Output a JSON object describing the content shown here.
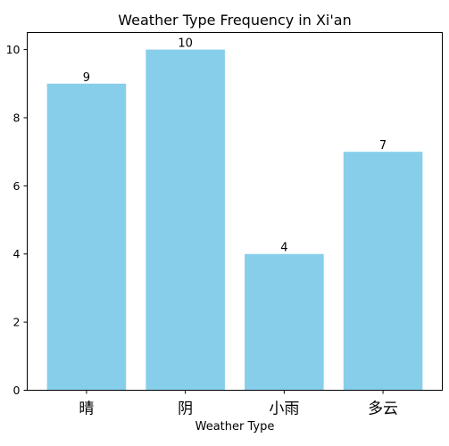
{
  "chart_data": {
    "type": "bar",
    "title": "Weather Type Frequency in Xi'an",
    "xlabel": "Weather Type",
    "ylabel": "",
    "categories": [
      "晴",
      "阴",
      "小雨",
      "多云"
    ],
    "values": [
      9,
      10,
      4,
      7
    ],
    "ylim": [
      0,
      10.5
    ],
    "yticks": [
      0,
      2,
      4,
      6,
      8,
      10
    ],
    "bar_color": "#87ceeb",
    "grid": false,
    "legend": null
  }
}
